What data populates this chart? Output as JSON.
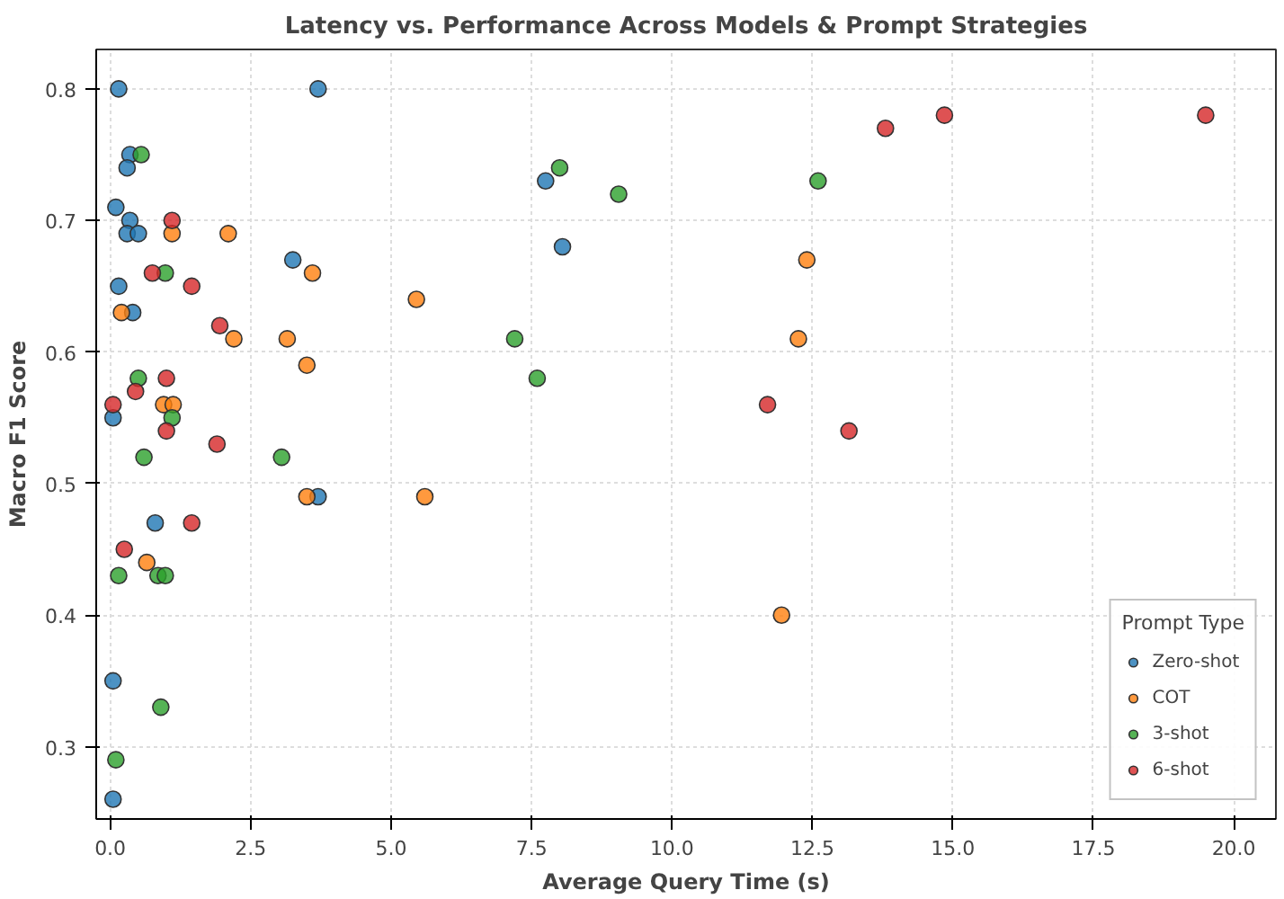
{
  "chart_data": {
    "type": "scatter",
    "title": "Latency vs. Performance Across Models & Prompt Strategies",
    "xlabel": "Average Query Time (s)",
    "ylabel": "Macro F1 Score",
    "legend_title": "Prompt Type",
    "legend": "bottom right",
    "grid": true,
    "marker": "circle",
    "xlim": [
      -0.25,
      20.75
    ],
    "ylim": [
      0.245,
      0.83
    ],
    "xticks": [
      {
        "value": 0,
        "label": "0.0"
      },
      {
        "value": 2.5,
        "label": "2.5"
      },
      {
        "value": 5,
        "label": "5.0"
      },
      {
        "value": 7.5,
        "label": "7.5"
      },
      {
        "value": 10,
        "label": "10.0"
      },
      {
        "value": 12.5,
        "label": "12.5"
      },
      {
        "value": 15,
        "label": "15.0"
      },
      {
        "value": 17.5,
        "label": "17.5"
      },
      {
        "value": 20,
        "label": "20.0"
      }
    ],
    "yticks": [
      {
        "value": 0.3,
        "label": "0.3"
      },
      {
        "value": 0.4,
        "label": "0.4"
      },
      {
        "value": 0.5,
        "label": "0.5"
      },
      {
        "value": 0.6,
        "label": "0.6"
      },
      {
        "value": 0.7,
        "label": "0.7"
      },
      {
        "value": 0.8,
        "label": "0.8"
      }
    ],
    "series": [
      {
        "name": "Zero-shot",
        "color": "#1f77b4",
        "x": [
          0.15,
          3.7,
          0.35,
          0.3,
          0.1,
          0.35,
          0.3,
          0.5,
          3.25,
          7.75,
          8.05,
          0.15,
          0.4,
          0.05,
          3.7,
          0.8,
          0.05,
          0.05
        ],
        "values": [
          0.8,
          0.8,
          0.75,
          0.74,
          0.71,
          0.7,
          0.69,
          0.69,
          0.67,
          0.73,
          0.68,
          0.65,
          0.63,
          0.55,
          0.49,
          0.47,
          0.35,
          0.26
        ]
      },
      {
        "name": "COT",
        "color": "#ff7f0e",
        "x": [
          1.1,
          2.1,
          3.6,
          5.45,
          0.2,
          2.2,
          3.15,
          3.5,
          0.95,
          1.12,
          3.5,
          5.6,
          0.65,
          12.4,
          12.25,
          11.95
        ],
        "values": [
          0.69,
          0.69,
          0.66,
          0.64,
          0.63,
          0.61,
          0.61,
          0.59,
          0.56,
          0.56,
          0.49,
          0.49,
          0.44,
          0.67,
          0.61,
          0.4
        ]
      },
      {
        "name": "3-shot",
        "color": "#2ca02c",
        "x": [
          0.55,
          0.98,
          0.5,
          1.1,
          0.6,
          0.15,
          0.85,
          0.98,
          0.9,
          0.1,
          3.05,
          8.0,
          9.05,
          7.2,
          7.6,
          12.6
        ],
        "values": [
          0.75,
          0.66,
          0.58,
          0.55,
          0.52,
          0.43,
          0.43,
          0.43,
          0.33,
          0.29,
          0.52,
          0.74,
          0.72,
          0.61,
          0.58,
          0.73
        ]
      },
      {
        "name": "6-shot",
        "color": "#d62728",
        "x": [
          1.1,
          0.75,
          1.45,
          1.95,
          1.0,
          0.45,
          0.05,
          1.0,
          1.9,
          1.45,
          0.25,
          11.7,
          13.15,
          13.8,
          14.85,
          19.5
        ],
        "values": [
          0.7,
          0.66,
          0.65,
          0.62,
          0.58,
          0.57,
          0.56,
          0.54,
          0.53,
          0.47,
          0.45,
          0.56,
          0.54,
          0.77,
          0.78,
          0.78
        ]
      }
    ]
  }
}
